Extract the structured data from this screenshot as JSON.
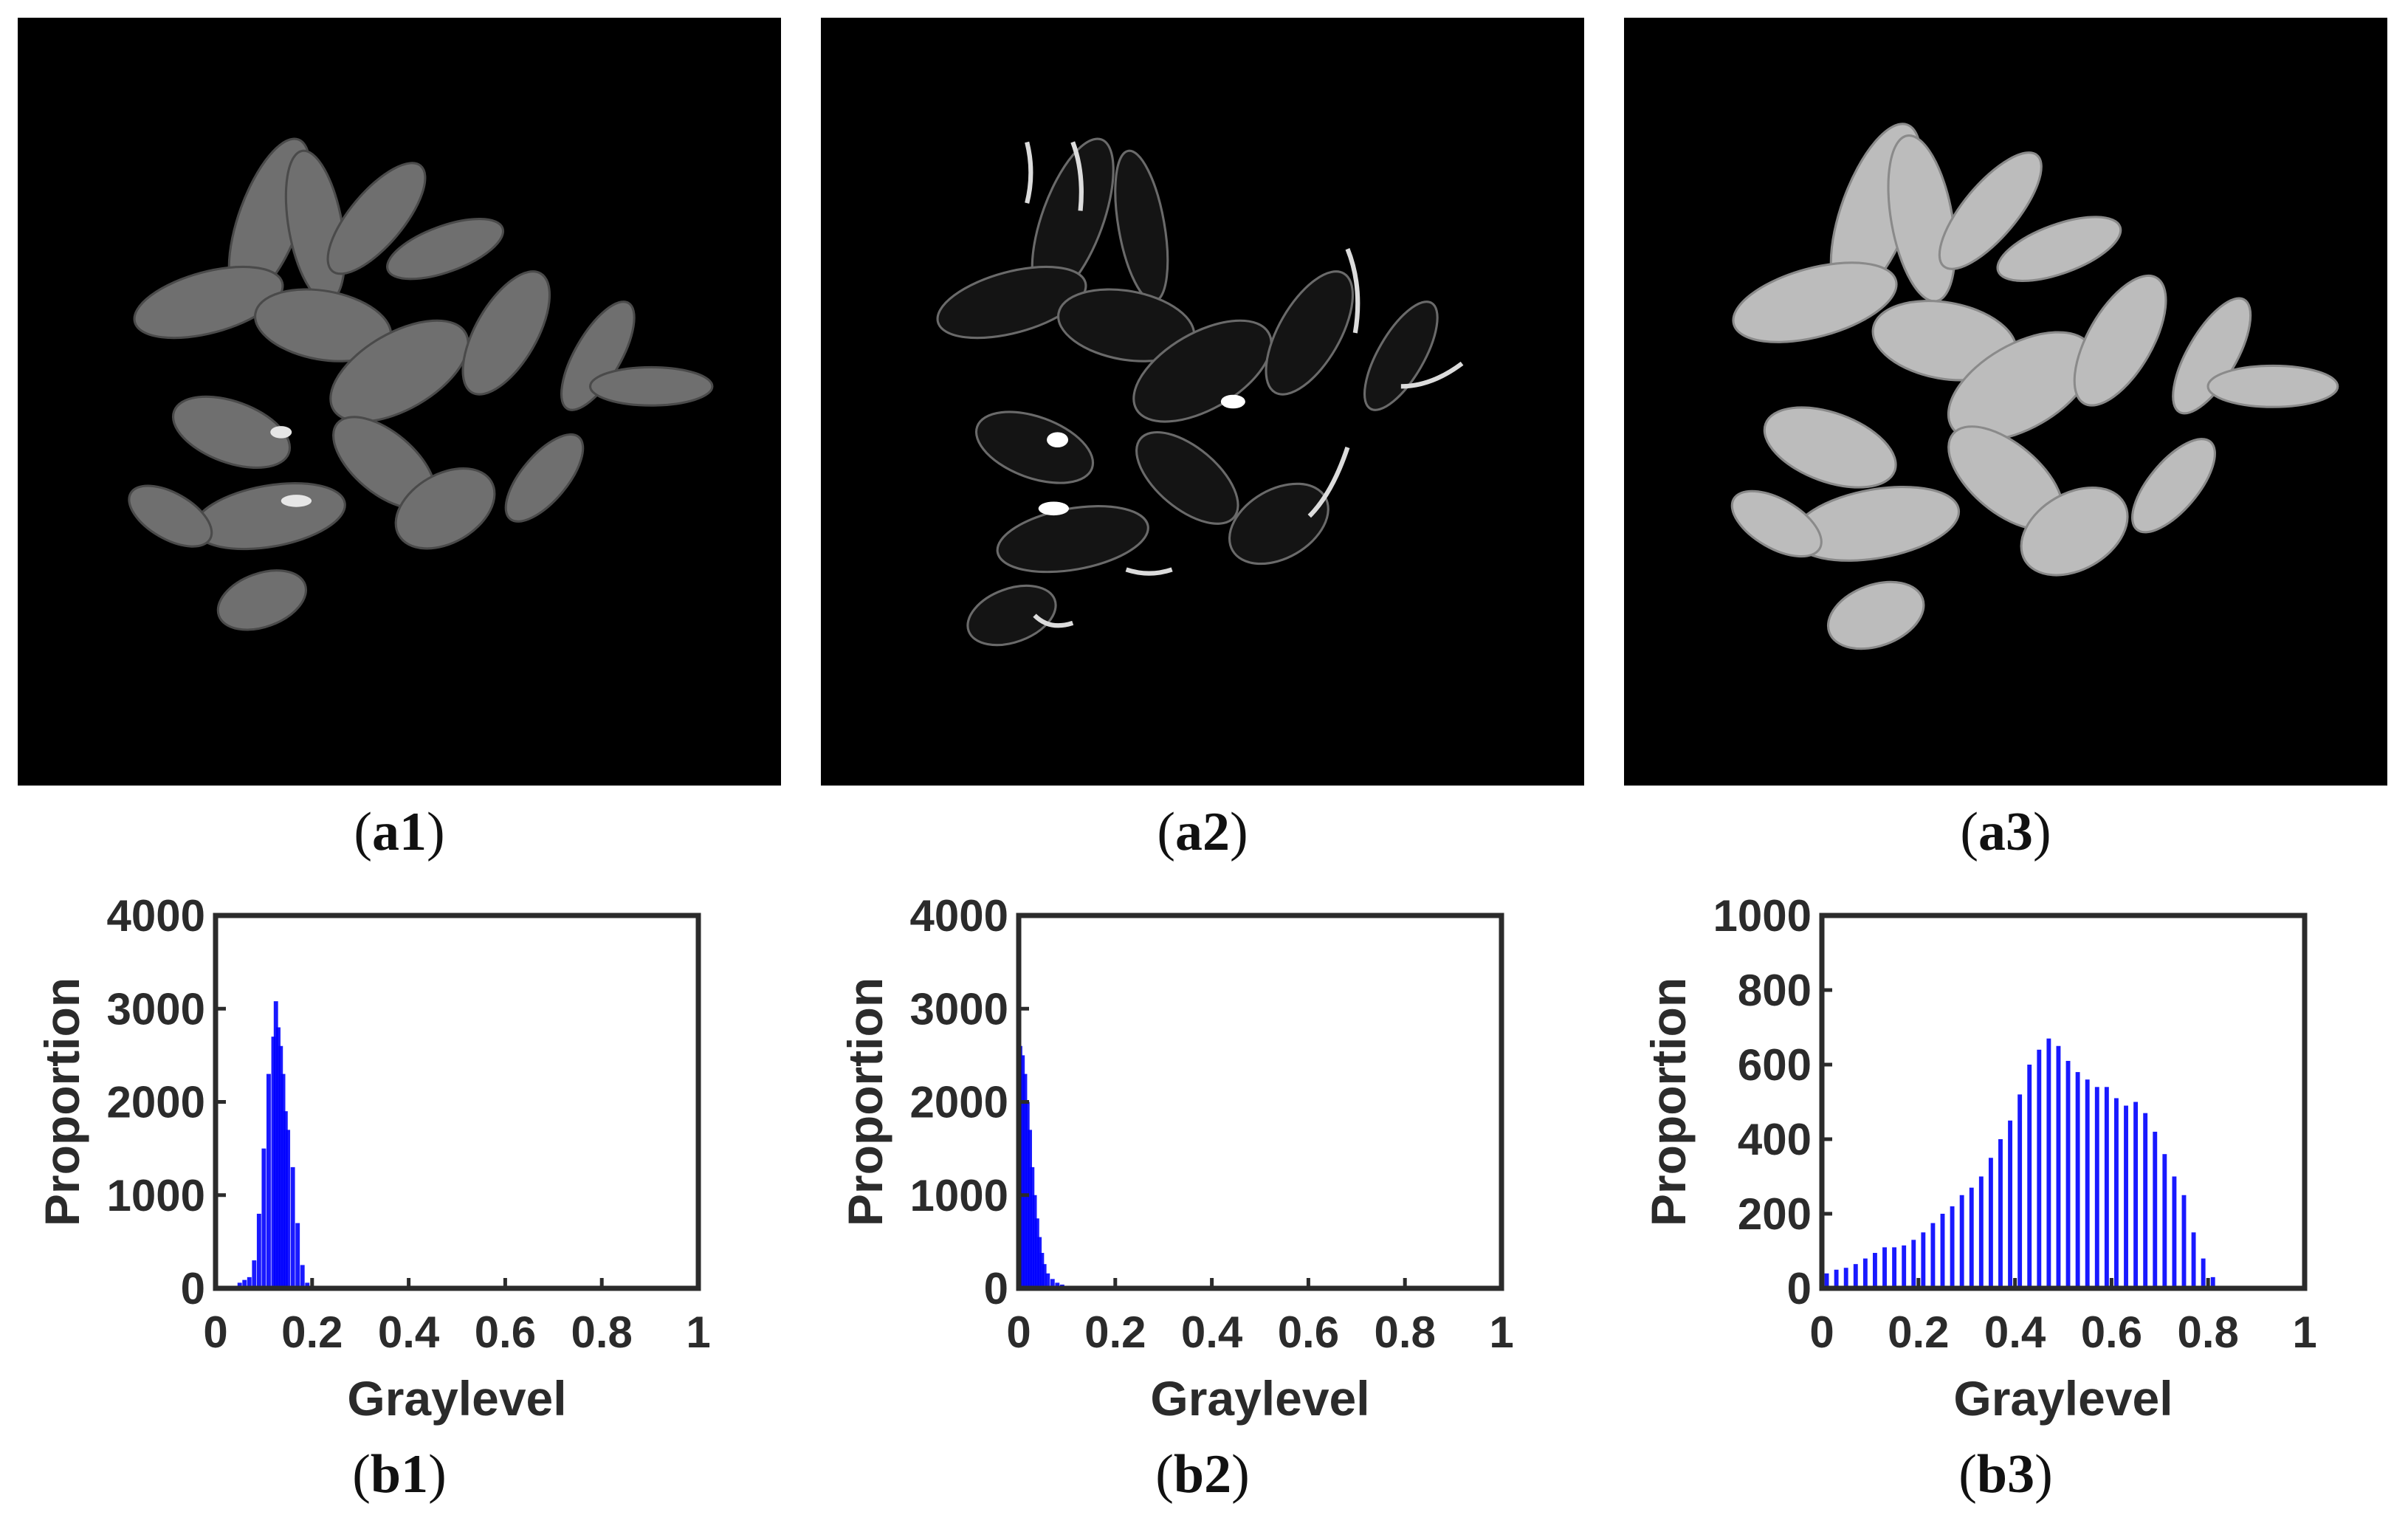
{
  "panels": [
    {
      "id": "a1",
      "label": "a1",
      "tone": "mid"
    },
    {
      "id": "a2",
      "label": "a2",
      "tone": "edge"
    },
    {
      "id": "a3",
      "label": "a3",
      "tone": "bright"
    }
  ],
  "chart_data": [
    {
      "type": "bar",
      "panel": "b1",
      "xlabel": "Graylevel",
      "ylabel": "Proportion",
      "xlim": [
        0,
        1
      ],
      "ylim": [
        0,
        4000
      ],
      "xticks": [
        "0",
        "0.2",
        "0.4",
        "0.6",
        "0.8",
        "1"
      ],
      "yticks": [
        "0",
        "1000",
        "2000",
        "3000",
        "4000"
      ],
      "bar_color": "#0000ff",
      "x": [
        0.04,
        0.05,
        0.06,
        0.07,
        0.08,
        0.09,
        0.1,
        0.11,
        0.12,
        0.125,
        0.13,
        0.135,
        0.14,
        0.145,
        0.15,
        0.16,
        0.17,
        0.18,
        0.19
      ],
      "values": [
        20,
        60,
        90,
        120,
        300,
        800,
        1500,
        2300,
        2700,
        3080,
        2800,
        2600,
        2300,
        1900,
        1700,
        1300,
        700,
        250,
        60
      ]
    },
    {
      "type": "bar",
      "panel": "b2",
      "xlabel": "Graylevel",
      "ylabel": "Proportion",
      "xlim": [
        0,
        1
      ],
      "ylim": [
        0,
        4000
      ],
      "xticks": [
        "0",
        "0.2",
        "0.4",
        "0.6",
        "0.8",
        "1"
      ],
      "yticks": [
        "0",
        "1000",
        "2000",
        "3000",
        "4000"
      ],
      "bar_color": "#0000ff",
      "x": [
        0.003,
        0.008,
        0.013,
        0.018,
        0.023,
        0.028,
        0.033,
        0.038,
        0.043,
        0.048,
        0.053,
        0.06,
        0.07,
        0.08,
        0.09,
        0.1,
        0.12
      ],
      "values": [
        2600,
        2500,
        2300,
        2000,
        1700,
        1300,
        1000,
        750,
        550,
        380,
        260,
        160,
        100,
        60,
        40,
        25,
        10
      ]
    },
    {
      "type": "bar",
      "panel": "b3",
      "xlabel": "Graylevel",
      "ylabel": "Proportion",
      "xlim": [
        0,
        1
      ],
      "ylim": [
        0,
        1000
      ],
      "xticks": [
        "0",
        "0.2",
        "0.4",
        "0.6",
        "0.8",
        "1"
      ],
      "yticks": [
        "0",
        "200",
        "400",
        "600",
        "800",
        "1000"
      ],
      "bar_color": "#0000ff",
      "x": [
        0.01,
        0.03,
        0.05,
        0.07,
        0.09,
        0.11,
        0.13,
        0.15,
        0.17,
        0.19,
        0.21,
        0.23,
        0.25,
        0.27,
        0.29,
        0.31,
        0.33,
        0.35,
        0.37,
        0.39,
        0.41,
        0.43,
        0.45,
        0.47,
        0.49,
        0.51,
        0.53,
        0.55,
        0.57,
        0.59,
        0.61,
        0.63,
        0.65,
        0.67,
        0.69,
        0.71,
        0.73,
        0.75,
        0.77,
        0.79,
        0.81
      ],
      "values": [
        40,
        50,
        55,
        65,
        80,
        95,
        110,
        110,
        115,
        130,
        150,
        175,
        200,
        220,
        250,
        270,
        300,
        350,
        400,
        450,
        520,
        600,
        640,
        670,
        650,
        610,
        580,
        560,
        540,
        540,
        510,
        490,
        500,
        470,
        420,
        360,
        300,
        250,
        150,
        80,
        30
      ]
    }
  ]
}
